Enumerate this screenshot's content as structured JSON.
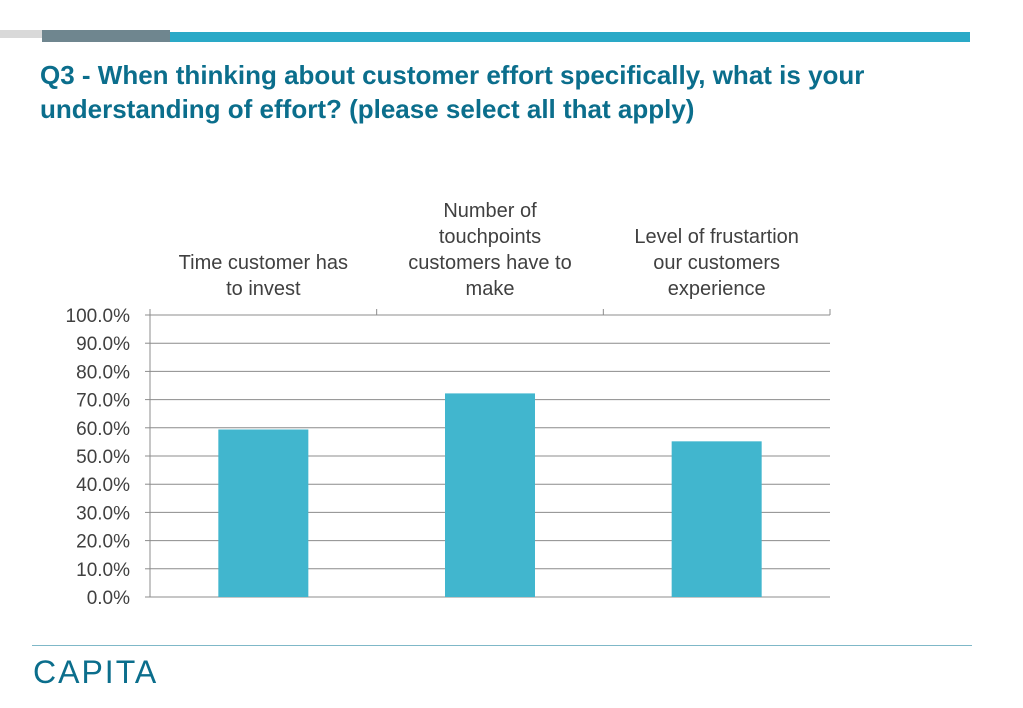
{
  "slide": {
    "title": "Q3 - When thinking about customer effort specifically, what is your understanding of effort? (please select all that apply)",
    "logo_text": "CAPITA"
  },
  "colors": {
    "accent": "#2aa9c7",
    "bar": "#41b6ce",
    "title": "#0b6e8c"
  },
  "chart_data": {
    "type": "bar",
    "categories": [
      "Time customer has to invest",
      "Number of touchpoints customers have to make",
      "Level of frustartion our customers experience"
    ],
    "category_label_lines": [
      [
        "Time customer has",
        "to invest"
      ],
      [
        "Number of",
        "touchpoints",
        "customers have to",
        "make"
      ],
      [
        "Level of frustartion",
        "our customers",
        "experience"
      ]
    ],
    "values": [
      59.4,
      72.2,
      55.2
    ],
    "y_ticks": [
      "0.0%",
      "10.0%",
      "20.0%",
      "30.0%",
      "40.0%",
      "50.0%",
      "60.0%",
      "70.0%",
      "80.0%",
      "90.0%",
      "100.0%"
    ],
    "ylim": [
      0,
      100
    ],
    "grid": true,
    "legend": "none",
    "x_axis_position": "top"
  }
}
